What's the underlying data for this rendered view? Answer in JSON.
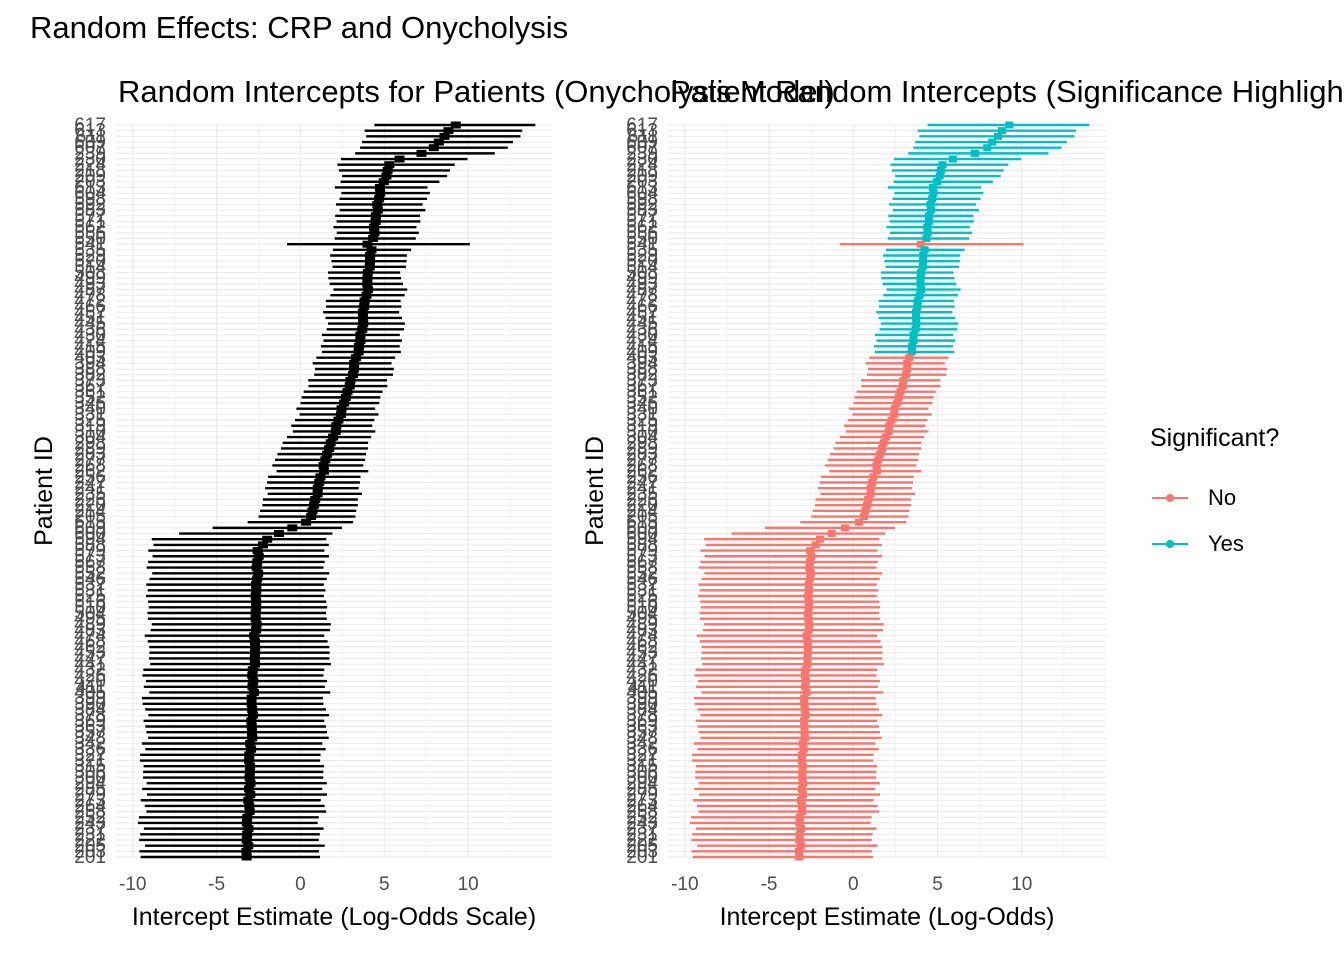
{
  "figure": {
    "title": "Random Effects: CRP and Onycholysis"
  },
  "legend": {
    "title": "Significant?",
    "items": [
      {
        "label": "No",
        "color": "#F8766D"
      },
      {
        "label": "Yes",
        "color": "#00BFC4"
      }
    ]
  },
  "chart_data": [
    {
      "type": "forest",
      "title": "Random Intercepts for Patients (Onycholysis Model)",
      "xlabel": "Intercept Estimate (Log-Odds Scale)",
      "ylabel": "Patient ID",
      "xlim": [
        -11,
        15
      ],
      "x_ticks": [
        -10,
        -5,
        0,
        5,
        10
      ],
      "point_color": "#000000",
      "top_labels": [
        "617",
        "613",
        "611",
        "609",
        "607"
      ],
      "bottom_labels": [
        "205",
        "203",
        "201"
      ],
      "profile": [
        {
          "rank": 0.0,
          "estimate": 9.2,
          "lower": 4.2,
          "upper": 13.8
        },
        {
          "rank": 0.035,
          "estimate": 7.8,
          "lower": 3.5,
          "upper": 12.2
        },
        {
          "rank": 0.05,
          "estimate": 5.4,
          "lower": 2.3,
          "upper": 9.5
        },
        {
          "rank": 0.09,
          "estimate": 4.7,
          "lower": 2.2,
          "upper": 7.5
        },
        {
          "rank": 0.16,
          "estimate": 4.3,
          "lower": 2.0,
          "upper": 6.8
        },
        {
          "rank": 0.2,
          "estimate": 4.1,
          "lower": 1.9,
          "upper": 6.2
        },
        {
          "rank": 0.3,
          "estimate": 3.5,
          "lower": 1.2,
          "upper": 5.9
        },
        {
          "rank": 0.37,
          "estimate": 2.8,
          "lower": 0.3,
          "upper": 5.0
        },
        {
          "rank": 0.4,
          "estimate": 2.3,
          "lower": -0.3,
          "upper": 4.4
        },
        {
          "rank": 0.46,
          "estimate": 1.5,
          "lower": -1.4,
          "upper": 4.0
        },
        {
          "rank": 0.54,
          "estimate": 0.6,
          "lower": -2.5,
          "upper": 3.3
        },
        {
          "rank": 0.565,
          "estimate": -1.9,
          "lower": -8.7,
          "upper": 1.7
        },
        {
          "rank": 0.58,
          "estimate": -2.5,
          "lower": -8.9,
          "upper": 1.6
        },
        {
          "rank": 0.75,
          "estimate": -2.8,
          "lower": -9.2,
          "upper": 1.6
        },
        {
          "rank": 1.0,
          "estimate": -3.2,
          "lower": -9.5,
          "upper": 1.2
        }
      ],
      "outliers": [
        {
          "rank": 0.16,
          "estimate": 4.0,
          "lower": -0.8,
          "upper": 10.1
        }
      ]
    },
    {
      "type": "forest",
      "title": "Patient Random Intercepts (Significance Highlighted)",
      "xlabel": "Intercept Estimate (Log-Odds)",
      "ylabel": "Patient ID",
      "xlim": [
        -11,
        15
      ],
      "x_ticks": [
        -10,
        -5,
        0,
        5,
        10
      ],
      "significant_rank_cutoff": 0.315,
      "colors": {
        "yes": "#00BFC4",
        "no": "#F8766D"
      },
      "top_labels": [
        "617",
        "613",
        "611",
        "609",
        "607"
      ],
      "bottom_labels": [
        "205",
        "203",
        "201"
      ]
    }
  ],
  "tick_labels": {
    "x": [
      "-10",
      "-5",
      "0",
      "5",
      "10"
    ]
  }
}
